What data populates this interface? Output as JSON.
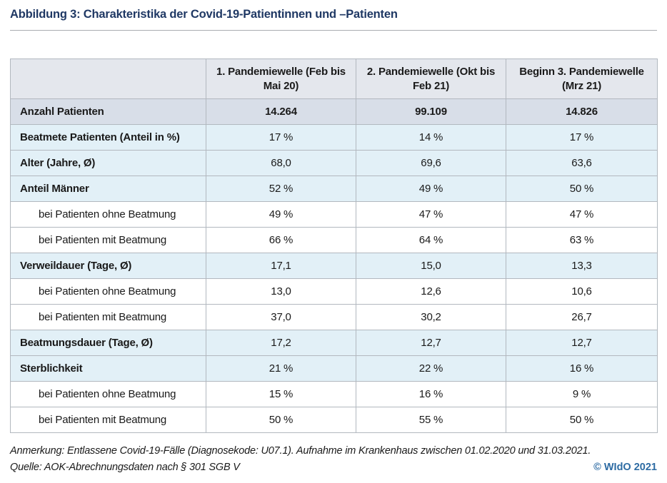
{
  "figure": {
    "title": "Abbildung 3: Charakteristika der Covid-19-Patientinnen und –Patienten"
  },
  "chart_data": {
    "type": "table",
    "title": "Abbildung 3: Charakteristika der Covid-19-Patientinnen und –Patienten",
    "columns": [
      "",
      "1. Pandemiewelle (Feb bis Mai 20)",
      "2. Pandemiewelle (Okt bis Feb 21)",
      "Beginn 3. Pandemiewelle (Mrz 21)"
    ],
    "rows": [
      [
        "Anzahl Patienten",
        "14.264",
        "99.109",
        "14.826"
      ],
      [
        "Beatmete Patienten (Anteil in %)",
        "17 %",
        "14 %",
        "17 %"
      ],
      [
        "Alter (Jahre, Ø)",
        "68,0",
        "69,6",
        "63,6"
      ],
      [
        "Anteil Männer",
        "52 %",
        "49 %",
        "50 %"
      ],
      [
        "bei Patienten ohne Beatmung",
        "49 %",
        "47 %",
        "47 %"
      ],
      [
        "bei Patienten mit Beatmung",
        "66 %",
        "64 %",
        "63 %"
      ],
      [
        "Verweildauer (Tage, Ø)",
        "17,1",
        "15,0",
        "13,3"
      ],
      [
        "bei Patienten ohne Beatmung",
        "13,0",
        "12,6",
        "10,6"
      ],
      [
        "bei Patienten mit Beatmung",
        "37,0",
        "30,2",
        "26,7"
      ],
      [
        "Beatmungsdauer (Tage, Ø)",
        "17,2",
        "12,7",
        "12,7"
      ],
      [
        "Sterblichkeit",
        "21 %",
        "22 %",
        "16 %"
      ],
      [
        "bei Patienten ohne Beatmung",
        "15 %",
        "16 %",
        "9 %"
      ],
      [
        "bei Patienten mit Beatmung",
        "50 %",
        "55 %",
        "50 %"
      ]
    ]
  },
  "footer": {
    "note": "Anmerkung: Entlassene Covid-19-Fälle (Diagnosekode: U07.1). Aufnahme im Krankenhaus zwischen 01.02.2020 und 31.03.2021.",
    "source": "Quelle: AOK-Abrechnungsdaten nach § 301 SGB V",
    "copyright": "© WIdO 2021"
  },
  "colors": {
    "title_blue": "#1f3864",
    "copyright_blue": "#2d6ba3",
    "header_bg": "#e4e7ed",
    "summary_row_bg": "#d8dee8",
    "metric_row_bg": "#e2f0f7",
    "sub_row_bg": "#ffffff",
    "border": "#b2b8bf"
  }
}
